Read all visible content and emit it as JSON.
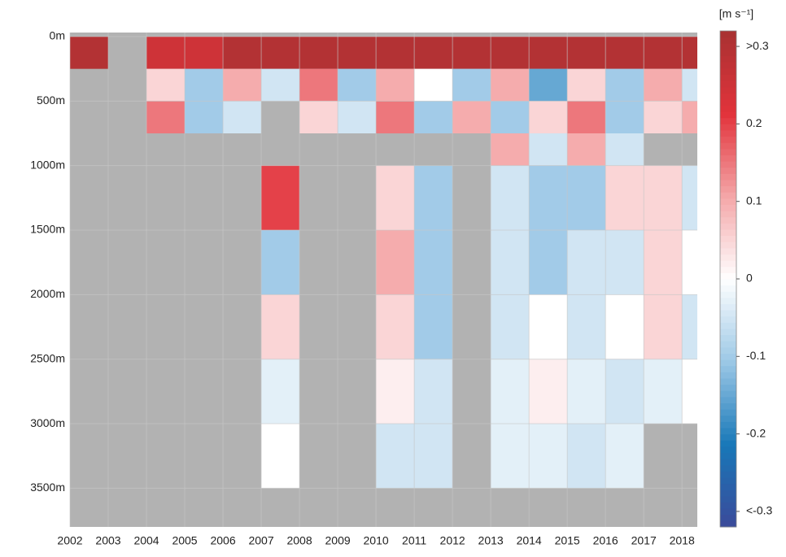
{
  "chart_data": {
    "type": "heatmap",
    "colorbar_label": "[m s⁻¹]",
    "x_edges": [
      2002,
      2003,
      2004,
      2005,
      2006,
      2007,
      2008,
      2009,
      2010,
      2011,
      2012,
      2013,
      2014,
      2015,
      2016,
      2017,
      2018,
      2018.4
    ],
    "y_edges": [
      0,
      250,
      500,
      750,
      1000,
      1500,
      2000,
      2500,
      3000,
      3500,
      3800
    ],
    "z": [
      [
        0.3,
        null,
        0.25,
        0.25,
        0.3,
        0.3,
        0.3,
        0.3,
        0.3,
        0.3,
        0.3,
        0.3,
        0.3,
        0.3,
        0.3,
        0.3,
        0.3
      ],
      [
        null,
        null,
        0.05,
        -0.1,
        0.1,
        -0.05,
        0.15,
        -0.1,
        0.1,
        0.0,
        -0.1,
        0.1,
        -0.15,
        0.05,
        -0.1,
        0.1,
        -0.05
      ],
      [
        null,
        null,
        0.15,
        -0.1,
        -0.05,
        null,
        0.05,
        -0.05,
        0.15,
        -0.1,
        0.1,
        -0.1,
        0.05,
        0.15,
        -0.1,
        0.05,
        0.1
      ],
      [
        null,
        null,
        null,
        null,
        null,
        null,
        null,
        null,
        null,
        null,
        null,
        0.1,
        -0.05,
        0.1,
        -0.05,
        null,
        null
      ],
      [
        null,
        null,
        null,
        null,
        null,
        0.2,
        null,
        null,
        0.05,
        -0.1,
        null,
        -0.05,
        -0.1,
        -0.1,
        0.05,
        0.05,
        -0.05
      ],
      [
        null,
        null,
        null,
        null,
        null,
        -0.1,
        null,
        null,
        0.1,
        -0.1,
        null,
        -0.05,
        -0.1,
        -0.05,
        -0.05,
        0.05,
        0.0
      ],
      [
        null,
        null,
        null,
        null,
        null,
        0.05,
        null,
        null,
        0.05,
        -0.1,
        null,
        -0.05,
        0.0,
        -0.05,
        0.0,
        0.05,
        -0.05
      ],
      [
        null,
        null,
        null,
        null,
        null,
        -0.03,
        null,
        null,
        0.02,
        -0.05,
        null,
        -0.03,
        0.02,
        -0.03,
        -0.05,
        -0.03,
        0.0
      ],
      [
        null,
        null,
        null,
        null,
        null,
        0.0,
        null,
        null,
        -0.05,
        -0.05,
        null,
        -0.03,
        -0.03,
        -0.05,
        -0.03,
        null,
        null
      ],
      [
        null,
        null,
        null,
        null,
        null,
        null,
        null,
        null,
        null,
        null,
        null,
        null,
        null,
        null,
        null,
        null,
        null
      ]
    ],
    "xlim": [
      2002,
      2018.4
    ],
    "ylim": [
      0,
      3800
    ],
    "xticks": [
      2002,
      2003,
      2004,
      2005,
      2006,
      2007,
      2008,
      2009,
      2010,
      2011,
      2012,
      2013,
      2014,
      2015,
      2016,
      2017,
      2018
    ],
    "yticks": [
      {
        "value": 0,
        "label": "0m"
      },
      {
        "value": 500,
        "label": "500m"
      },
      {
        "value": 1000,
        "label": "1000m"
      },
      {
        "value": 1500,
        "label": "1500m"
      },
      {
        "value": 2000,
        "label": "2000m"
      },
      {
        "value": 2500,
        "label": "2500m"
      },
      {
        "value": 3000,
        "label": "3000m"
      },
      {
        "value": 3500,
        "label": "3500m"
      }
    ],
    "clim": [
      -0.32,
      0.32
    ],
    "cticks": [
      {
        "value": 0.3,
        "label": ">0.3"
      },
      0.2,
      0.1,
      0,
      -0.1,
      -0.2,
      {
        "value": -0.3,
        "label": "<-0.3"
      }
    ],
    "colormap": [
      "#3b4a9a",
      "#1878b8",
      "#9cc8e6",
      "#ffffff",
      "#f4a6a8",
      "#e2333b",
      "#a83232"
    ],
    "missing_color": "#b2b2b2",
    "grid": true
  }
}
